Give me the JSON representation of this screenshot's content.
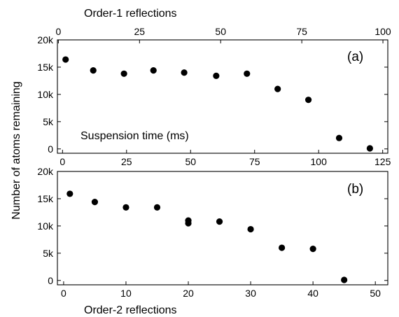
{
  "figure": {
    "ylabel": "Number of atoms remaining",
    "marker_color": "#000000"
  },
  "chart_data": [
    {
      "type": "scatter",
      "panel": "(a)",
      "xlabel": "Suspension time (ms)",
      "x2label": "Order-1 reflections",
      "ylabel": "Number of atoms remaining",
      "xlim": [
        -2,
        127
      ],
      "ylim": [
        -800,
        20000
      ],
      "xticks": [
        0,
        25,
        50,
        75,
        100,
        125
      ],
      "x2lim": [
        -0.3,
        101.5
      ],
      "x2ticks": [
        0,
        25,
        50,
        75,
        100
      ],
      "yticks": [
        0,
        5000,
        10000,
        15000,
        20000
      ],
      "yticklabels": [
        "0",
        "5k",
        "10k",
        "15k",
        "20k"
      ],
      "series": [
        {
          "x": [
            1.2,
            12,
            24,
            35.5,
            47.5,
            60,
            72,
            84,
            96,
            108,
            120
          ],
          "y": [
            16400,
            14400,
            13800,
            14400,
            14000,
            13400,
            13800,
            11000,
            9000,
            2000,
            100
          ]
        }
      ]
    },
    {
      "type": "scatter",
      "panel": "(b)",
      "xlabel": "Order-2 reflections",
      "ylabel": "Number of atoms remaining",
      "xlim": [
        -1,
        52
      ],
      "ylim": [
        -800,
        20000
      ],
      "xticks": [
        0,
        10,
        20,
        30,
        40,
        50
      ],
      "yticks": [
        0,
        5000,
        10000,
        15000,
        20000
      ],
      "yticklabels": [
        "0",
        "5k",
        "10k",
        "15k",
        "20k"
      ],
      "series": [
        {
          "x": [
            1,
            5,
            10,
            15,
            20,
            20,
            25,
            30,
            35,
            40,
            45
          ],
          "y": [
            15900,
            14400,
            13400,
            13400,
            11000,
            10500,
            10800,
            9400,
            6000,
            5800,
            100
          ]
        }
      ]
    }
  ]
}
